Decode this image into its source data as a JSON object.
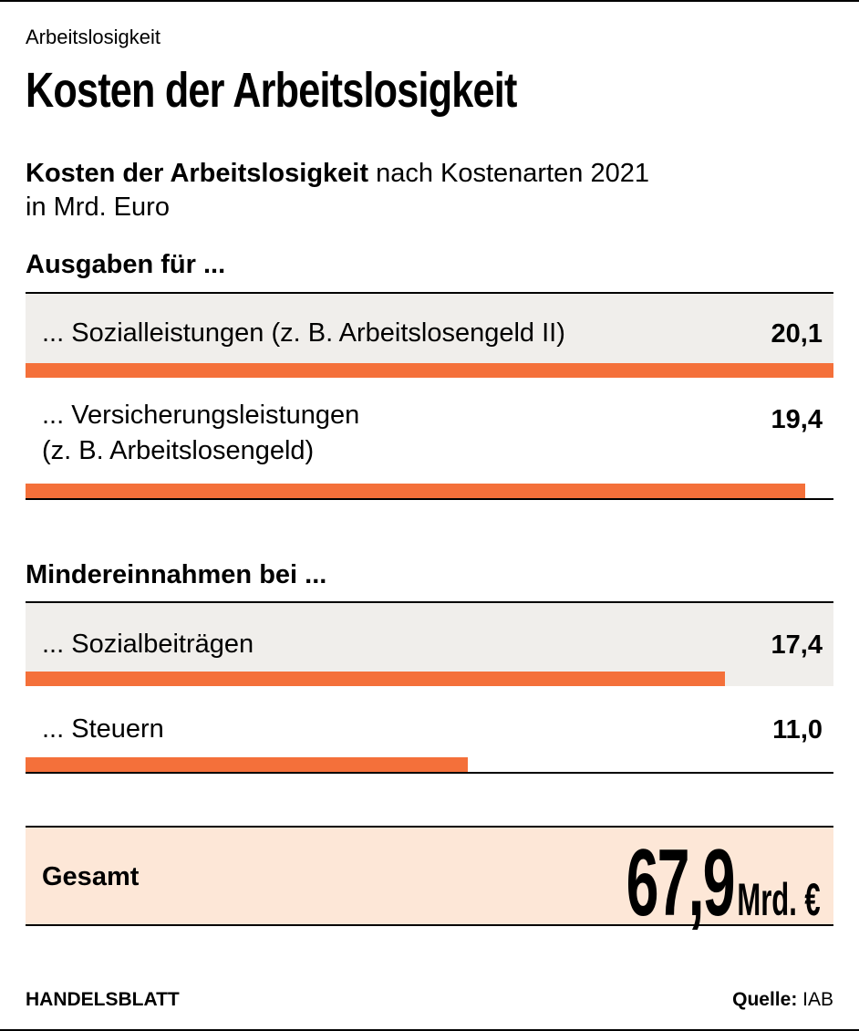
{
  "kicker": "Arbeitslosigkeit",
  "title": "Kosten der Arbeitslosigkeit",
  "subtitle": {
    "bold": "Kosten der Arbeitslosigkeit",
    "rest": " nach Kostenarten 2021",
    "unit": "in Mrd. Euro"
  },
  "colors": {
    "bar": "#f4703a",
    "row_bg": "#f0eeeb",
    "total_bg": "#fde7d7"
  },
  "chart_data": {
    "type": "bar",
    "orientation": "horizontal",
    "groups": [
      {
        "title": "Ausgaben für ...",
        "items": [
          {
            "label": "... Sozialleistungen (z. B. Arbeitslosengeld II)",
            "value": 20.1,
            "display": "20,1"
          },
          {
            "label": "... Versicherungsleistungen",
            "label2": "(z. B. Arbeitslosengeld)",
            "value": 19.4,
            "display": "19,4"
          }
        ]
      },
      {
        "title": "Mindereinnahmen bei ...",
        "items": [
          {
            "label": "... Sozialbeiträgen",
            "value": 17.4,
            "display": "17,4"
          },
          {
            "label": "... Steuern",
            "value": 11.0,
            "display": "11,0"
          }
        ]
      }
    ],
    "total": {
      "label": "Gesamt",
      "value": "67,9",
      "unit": "Mrd. €"
    }
  },
  "footer": {
    "brand": "HANDELSBLATT",
    "source_label": "Quelle:",
    "source": " IAB"
  }
}
